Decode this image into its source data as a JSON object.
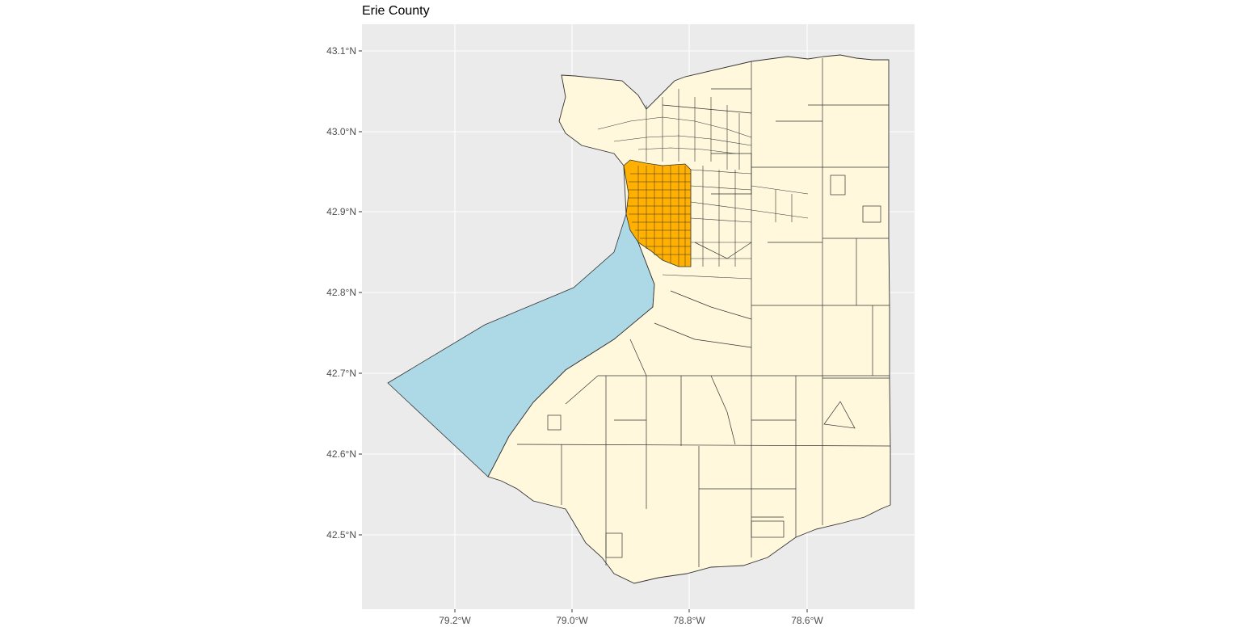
{
  "title": "Erie County",
  "axes": {
    "y_ticks": [
      "43.1°N",
      "43.0°N",
      "42.9°N",
      "42.8°N",
      "42.7°N",
      "42.6°N",
      "42.5°N"
    ],
    "x_ticks": [
      "79.2°W",
      "79.0°W",
      "78.8°W",
      "78.6°W"
    ]
  },
  "colors": {
    "panel_background": "#ebebeb",
    "gridline": "#ffffff",
    "tract_fill": "#fff8dc",
    "highlight_fill": "#ffb000",
    "lake_fill": "#add8e6",
    "border": "#333333"
  }
}
